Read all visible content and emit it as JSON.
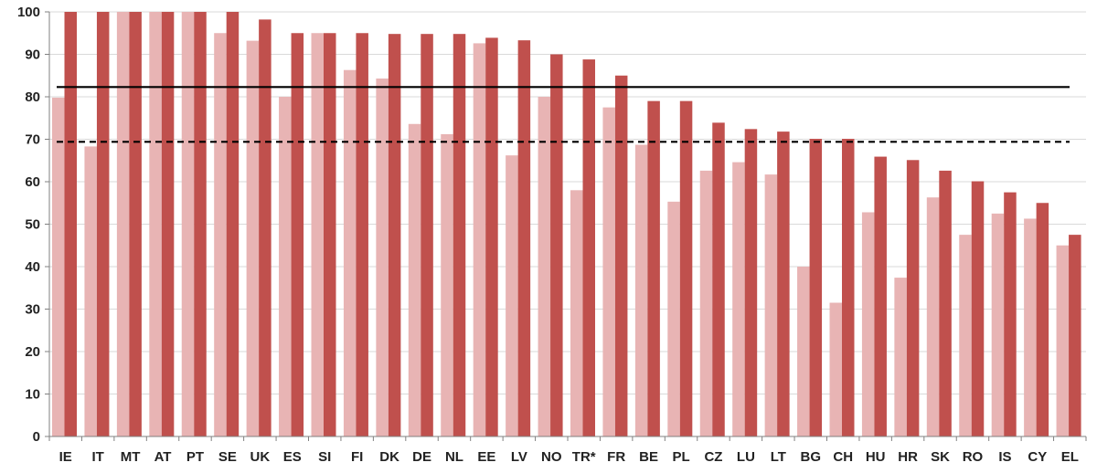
{
  "chart_data": {
    "type": "bar",
    "title": "",
    "xlabel": "",
    "ylabel": "",
    "ylim": [
      0,
      100
    ],
    "yticks": [
      0,
      10,
      20,
      30,
      40,
      50,
      60,
      70,
      80,
      90,
      100
    ],
    "grid": true,
    "legend": "none",
    "categories": [
      "IE",
      "IT",
      "MT",
      "AT",
      "PT",
      "SE",
      "UK",
      "ES",
      "SI",
      "FI",
      "DK",
      "DE",
      "NL",
      "EE",
      "LV",
      "NO",
      "TR*",
      "FR",
      "BE",
      "PL",
      "CZ",
      "LU",
      "LT",
      "BG",
      "CH",
      "HU",
      "HR",
      "SK",
      "RO",
      "IS",
      "CY",
      "EL"
    ],
    "series": [
      {
        "color": "#e8b4b4",
        "values": [
          79.8,
          68.3,
          100,
          100,
          100,
          95,
          93.2,
          80,
          95,
          86.3,
          84.3,
          73.6,
          71.2,
          92.6,
          66.2,
          80,
          58,
          77.5,
          68.7,
          55.3,
          62.6,
          64.6,
          61.7,
          40,
          31.5,
          52.8,
          37.4,
          56.3,
          47.5,
          52.5,
          51.3,
          45
        ]
      },
      {
        "color": "#c0504d",
        "values": [
          100,
          100,
          100,
          100,
          100,
          100,
          98.2,
          95,
          95,
          95,
          94.8,
          94.8,
          94.8,
          93.9,
          93.3,
          90,
          88.8,
          85,
          79,
          79,
          73.9,
          72.4,
          71.8,
          70.1,
          70.1,
          65.9,
          65.1,
          62.6,
          60.1,
          57.5,
          55,
          47.5
        ]
      }
    ],
    "reference_lines": [
      {
        "value": 82.3,
        "style": "solid",
        "color": "#000000"
      },
      {
        "value": 69.4,
        "style": "dashed",
        "color": "#000000"
      }
    ],
    "gridline_color": "#d9d9d9",
    "axis_color": "#808080"
  }
}
